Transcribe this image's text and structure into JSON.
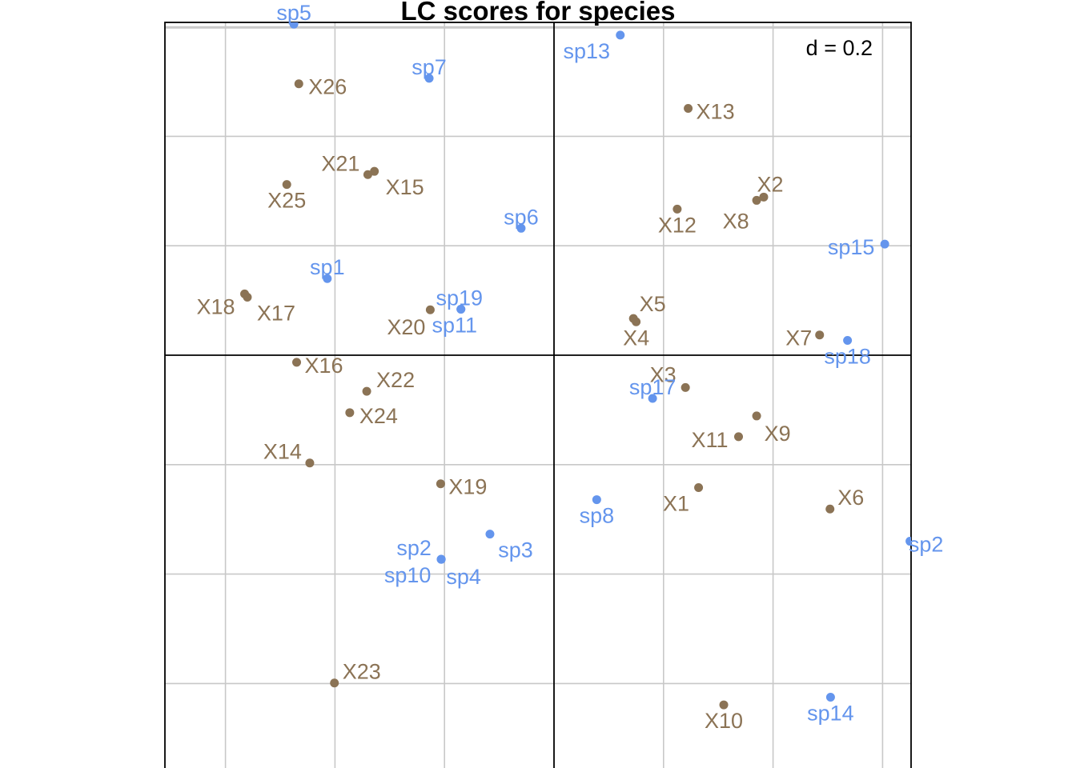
{
  "chart_data": {
    "type": "scatter",
    "title": "LC scores for species",
    "grid_label": "d = 0.2",
    "grid": true,
    "xlim": [
      -0.71,
      0.65
    ],
    "ylim": [
      -0.75,
      0.61
    ],
    "grid_step": 0.2,
    "colors": {
      "samples": "#8B7355",
      "species": "#6495ED"
    },
    "series": [
      {
        "points": [
          {
            "label": "X1",
            "x": 0.264,
            "y": -0.242
          },
          {
            "label": "X2",
            "x": 0.383,
            "y": 0.289
          },
          {
            "label": "X3",
            "x": 0.24,
            "y": -0.059
          },
          {
            "label": "X4",
            "x": 0.15,
            "y": 0.061
          },
          {
            "label": "X5",
            "x": 0.145,
            "y": 0.067
          },
          {
            "label": "X6",
            "x": 0.504,
            "y": -0.281
          },
          {
            "label": "X7",
            "x": 0.485,
            "y": 0.037
          },
          {
            "label": "X8",
            "x": 0.37,
            "y": 0.283
          },
          {
            "label": "X9",
            "x": 0.37,
            "y": -0.111
          },
          {
            "label": "X10",
            "x": 0.31,
            "y": -0.639
          },
          {
            "label": "X11",
            "x": 0.337,
            "y": -0.149
          },
          {
            "label": "X12",
            "x": 0.225,
            "y": 0.267
          },
          {
            "label": "X13",
            "x": 0.245,
            "y": 0.451
          },
          {
            "label": "X14",
            "x": -0.446,
            "y": -0.197
          },
          {
            "label": "X15",
            "x": -0.328,
            "y": 0.336
          },
          {
            "label": "X16",
            "x": -0.47,
            "y": -0.013
          },
          {
            "label": "X17",
            "x": -0.56,
            "y": 0.106
          },
          {
            "label": "X18",
            "x": -0.565,
            "y": 0.112
          },
          {
            "label": "X19",
            "x": -0.207,
            "y": -0.235
          },
          {
            "label": "X20",
            "x": -0.226,
            "y": 0.083
          },
          {
            "label": "X21",
            "x": -0.34,
            "y": 0.33
          },
          {
            "label": "X22",
            "x": -0.342,
            "y": -0.066
          },
          {
            "label": "X23",
            "x": -0.401,
            "y": -0.599
          },
          {
            "label": "X24",
            "x": -0.373,
            "y": -0.105
          },
          {
            "label": "X25",
            "x": -0.488,
            "y": 0.312
          },
          {
            "label": "X26",
            "x": -0.466,
            "y": 0.496
          }
        ]
      },
      {
        "points": [
          {
            "label": "sp1",
            "x": -0.414,
            "y": 0.14
          },
          {
            "label": "sp2",
            "x": -0.206,
            "y": -0.373
          },
          {
            "label": "sp3",
            "x": -0.117,
            "y": -0.327
          },
          {
            "label": "sp4",
            "x": -0.206,
            "y": -0.373
          },
          {
            "label": "sp5",
            "x": -0.475,
            "y": 0.605
          },
          {
            "label": "sp6",
            "x": -0.06,
            "y": 0.232
          },
          {
            "label": "sp7",
            "x": -0.228,
            "y": 0.506
          },
          {
            "label": "sp8",
            "x": 0.078,
            "y": -0.264
          },
          {
            "label": "sp10",
            "x": -0.206,
            "y": -0.373
          },
          {
            "label": "sp11",
            "x": -0.17,
            "y": 0.084
          },
          {
            "label": "sp13",
            "x": 0.121,
            "y": 0.585
          },
          {
            "label": "sp14",
            "x": 0.505,
            "y": -0.625
          },
          {
            "label": "sp15",
            "x": 0.604,
            "y": 0.203
          },
          {
            "label": "sp17",
            "x": 0.18,
            "y": -0.079
          },
          {
            "label": "sp18",
            "x": 0.536,
            "y": 0.027
          },
          {
            "label": "sp19",
            "x": -0.17,
            "y": 0.084
          },
          {
            "label": "sp2",
            "x": 0.65,
            "y": -0.34
          }
        ]
      }
    ]
  }
}
